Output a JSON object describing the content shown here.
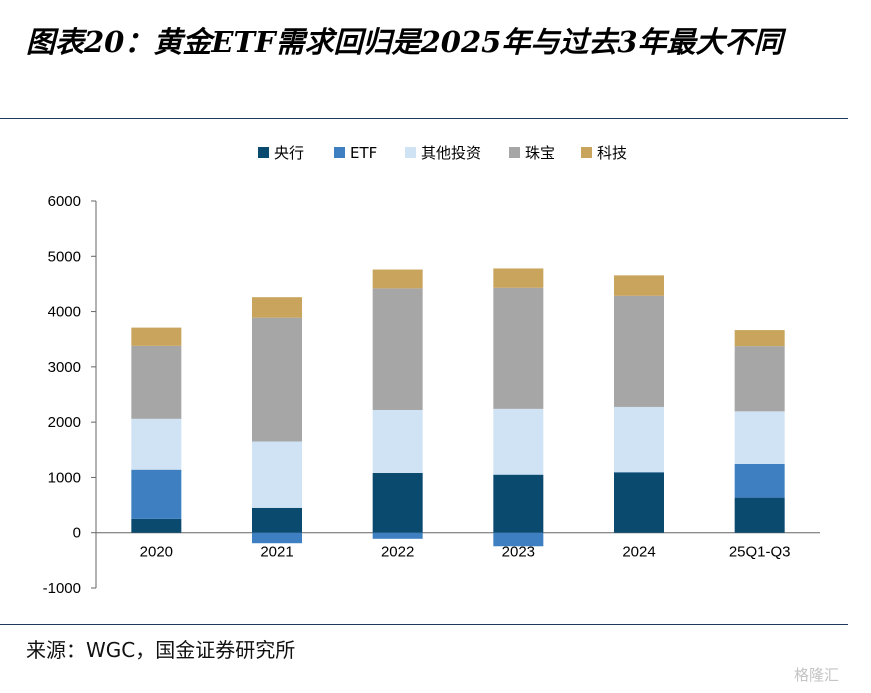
{
  "header": {
    "title": "图表20：黄金ETF需求回归是2025年与过去3年最大不同"
  },
  "footer": {
    "source": "来源：WGC，国金证券研究所",
    "watermark": "格隆汇"
  },
  "chart_data": {
    "type": "bar",
    "stacked": true,
    "categories": [
      "2020",
      "2021",
      "2022",
      "2023",
      "2024",
      "25Q1-Q3"
    ],
    "series": [
      {
        "name": "央行",
        "color": "#0b4a6f",
        "values": [
          250,
          450,
          1080,
          1050,
          1090,
          635
        ]
      },
      {
        "name": "ETF",
        "color": "#3e7fc1",
        "values": [
          890,
          -190,
          -110,
          -245,
          5,
          610
        ]
      },
      {
        "name": "其他投资",
        "color": "#cfe3f4",
        "values": [
          920,
          1200,
          1140,
          1190,
          1180,
          950
        ]
      },
      {
        "name": "珠宝",
        "color": "#a6a6a6",
        "values": [
          1320,
          2240,
          2200,
          2190,
          2010,
          1180
        ]
      },
      {
        "name": "科技",
        "color": "#c9a45c",
        "values": [
          330,
          370,
          340,
          350,
          370,
          290
        ]
      }
    ],
    "ylim": [
      -1000,
      6000
    ],
    "yticks": [
      -1000,
      0,
      1000,
      2000,
      3000,
      4000,
      5000,
      6000
    ],
    "legend_position": "top"
  }
}
